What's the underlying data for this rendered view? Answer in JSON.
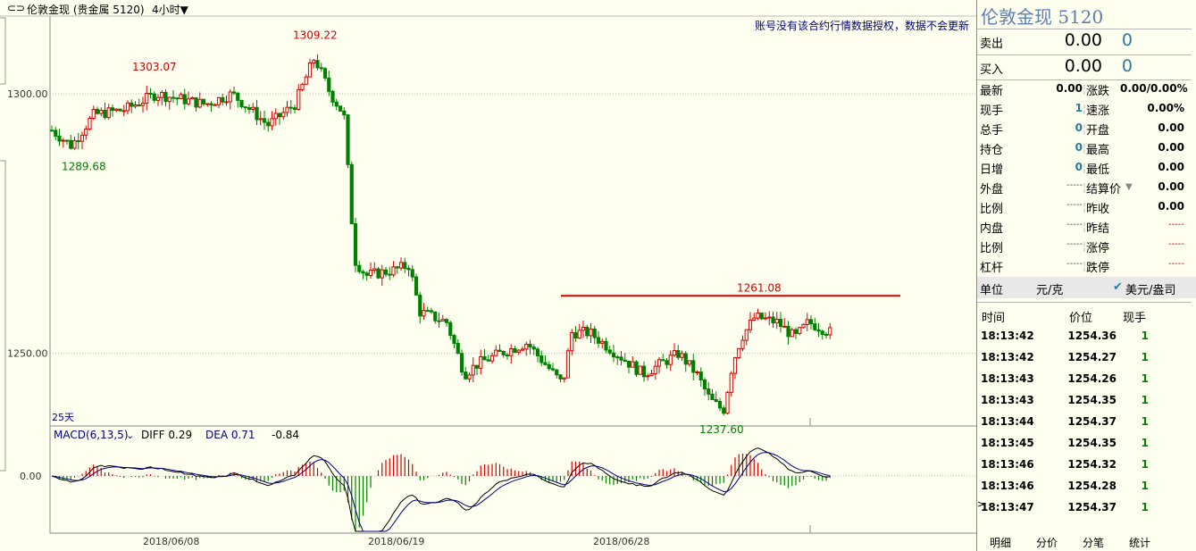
{
  "header": {
    "instrument": "伦敦金现 (贵金属 5120)",
    "period": "4小时▼",
    "notice": "账号没有该合约行情数据授权，数据不会更新"
  },
  "chart_data": {
    "type": "candlestick",
    "price_axis": {
      "ticks": [
        "1300.00",
        "1250.00"
      ],
      "ylim": [
        1236,
        1315
      ]
    },
    "date_labels": [
      "2018/06/08",
      "2018/06/19",
      "2018/06/28"
    ],
    "annotations": [
      "1309.22",
      "1303.07",
      "1289.68",
      "1261.08",
      "1237.60"
    ],
    "range_label": "25天",
    "resistance_line": 1261.08,
    "macd": {
      "label": "MACD(6,13,5)",
      "diff": "DIFF 0.29",
      "dea": "DEA 0.71",
      "macd": "-0.84",
      "zero_tick": "0.00"
    }
  },
  "quote": {
    "title": "伦敦金现  5120",
    "sell_label": "卖出",
    "sell_price": "0.00",
    "sell_vol": "0",
    "buy_label": "买入",
    "buy_price": "0.00",
    "buy_vol": "0",
    "left": [
      {
        "label": "最新",
        "value": "0.00"
      },
      {
        "label": "现手",
        "value": "1"
      },
      {
        "label": "总手",
        "value": "0"
      },
      {
        "label": "持仓",
        "value": "0"
      },
      {
        "label": "日增",
        "value": "0"
      },
      {
        "label": "外盘",
        "value": "-----"
      },
      {
        "label": "比例",
        "value": "-----"
      },
      {
        "label": "内盘",
        "value": "-----"
      },
      {
        "label": "比例",
        "value": "-----"
      },
      {
        "label": "杠杆",
        "value": "-----"
      }
    ],
    "right": [
      {
        "label": "涨跌",
        "value": "0.00/0.00%"
      },
      {
        "label": "速涨",
        "value": "0.00%"
      },
      {
        "label": "开盘",
        "value": "0.00"
      },
      {
        "label": "最高",
        "value": "0.00"
      },
      {
        "label": "最低",
        "value": "0.00"
      },
      {
        "label": "结算价",
        "value": "0.00"
      },
      {
        "label": "昨收",
        "value": "0.00"
      },
      {
        "label": "昨结",
        "value": "-----"
      },
      {
        "label": "涨停",
        "value": "-----"
      },
      {
        "label": "跌停",
        "value": "-----"
      }
    ],
    "unit_label": "单位",
    "unit_value": "元/克",
    "unit_option": "美元/盎司"
  },
  "ticks": {
    "headers": [
      "时间",
      "价位",
      "现手"
    ],
    "rows": [
      [
        "18:13:42",
        "1254.36",
        "1"
      ],
      [
        "18:13:42",
        "1254.27",
        "1"
      ],
      [
        "18:13:43",
        "1254.26",
        "1"
      ],
      [
        "18:13:43",
        "1254.35",
        "1"
      ],
      [
        "18:13:44",
        "1254.37",
        "1"
      ],
      [
        "18:13:45",
        "1254.35",
        "1"
      ],
      [
        "18:13:46",
        "1254.32",
        "1"
      ],
      [
        "18:13:46",
        "1254.28",
        "1"
      ],
      [
        "18:13:47",
        "1254.37",
        "1"
      ]
    ]
  },
  "tabs": [
    "明细",
    "分价",
    "分笔",
    "统计"
  ],
  "colors": {
    "up": "#d40000",
    "down": "#008000",
    "line": "#000080"
  }
}
